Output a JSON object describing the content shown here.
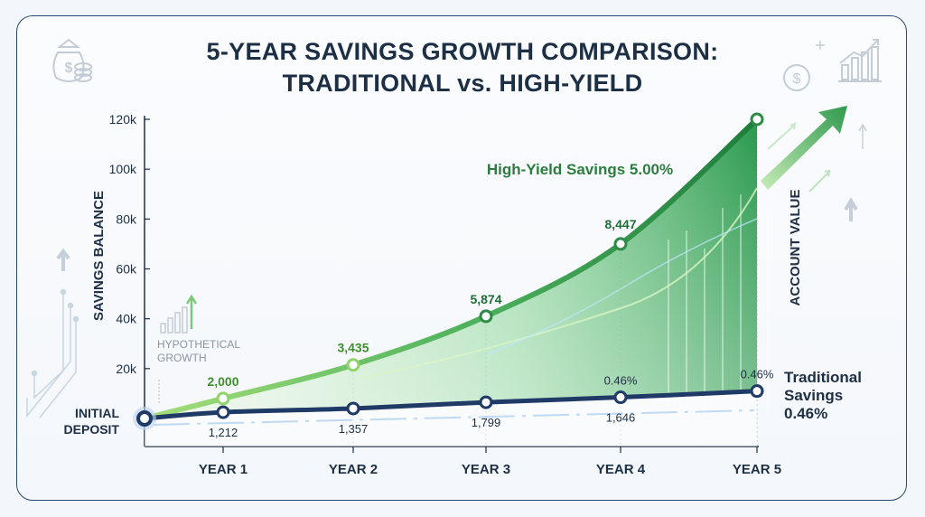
{
  "chart_data": {
    "type": "line",
    "title": "5-YEAR SAVINGS GROWTH COMPARISON:",
    "subtitle": "TRADITIONAL vs. HIGH-YIELD",
    "ylabel": "SAVINGS BALANCE",
    "ylabel_right": "ACCOUNT VALUE",
    "ylim": [
      0,
      120000
    ],
    "y_ticks": [
      20000,
      40000,
      60000,
      80000,
      100000,
      120000
    ],
    "y_tick_labels": [
      "20k",
      "40k",
      "60k",
      "80k",
      "100k",
      "120k"
    ],
    "categories": [
      "INITIAL DEPOSIT",
      "YEAR 1",
      "YEAR 2",
      "YEAR 3",
      "YEAR 4",
      "YEAR 5"
    ],
    "x_tick_labels": [
      "YEAR 1",
      "YEAR 2",
      "YEAR 3",
      "YEAR 4",
      "YEAR 5"
    ],
    "initial_deposit_label": [
      "INITIAL",
      "DEPOSIT"
    ],
    "series": [
      {
        "name": "High-Yield Savings 5.00%",
        "color": "#2e8b47",
        "values": [
          0,
          8000,
          21500,
          41000,
          70000,
          120000
        ],
        "labels": [
          "",
          "2,000",
          "3,435",
          "5,874",
          "8,447",
          ""
        ]
      },
      {
        "name": "Traditional Savings 0.46%",
        "color": "#1f3a66",
        "values": [
          0,
          2500,
          4000,
          6500,
          8500,
          11000
        ],
        "labels": [
          "",
          "1,212",
          "1,357",
          "1,799",
          "1,646",
          ""
        ],
        "rate_labels": [
          "",
          "",
          "",
          "",
          "0.46%",
          "0.46%"
        ]
      }
    ],
    "legend": {
      "high_yield": "High-Yield Savings 5.00%",
      "traditional": [
        "Traditional",
        "Savings",
        "0.46%"
      ]
    },
    "annotation": [
      "HYPOTHETICAL",
      "GROWTH"
    ],
    "colors": {
      "high_yield_line": "#2e8b47",
      "high_yield_fill": "#3fae5a",
      "light_green": "#a6df7a",
      "traditional_line": "#1f3a66",
      "text_dark": "#1d2f45"
    },
    "icons": [
      "money-bag-icon",
      "dollar-coin-icon",
      "bar-chart-icon",
      "up-arrow-icon"
    ]
  }
}
